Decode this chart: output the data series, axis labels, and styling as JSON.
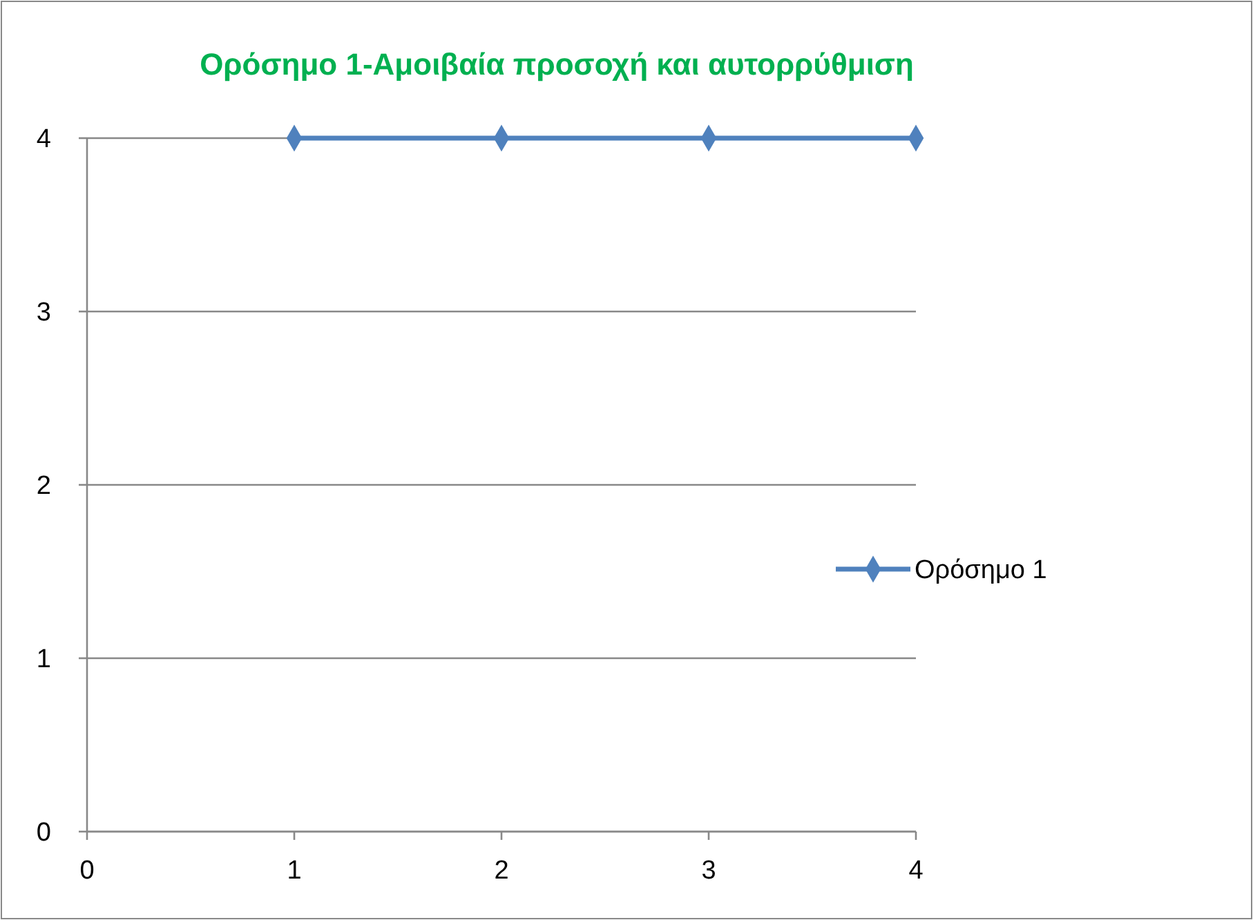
{
  "chart_data": {
    "type": "line",
    "title": "Ορόσημο 1-Αμοιβαία προσοχή και αυτορρύθμιση",
    "x": [
      1,
      2,
      3,
      4
    ],
    "series": [
      {
        "name": "Ορόσημο 1",
        "color": "#4f81bd",
        "values": [
          4,
          4,
          4,
          4
        ]
      }
    ],
    "xlim": [
      0,
      4
    ],
    "xticks": [
      0,
      1,
      2,
      3,
      4
    ],
    "ylim": [
      0,
      4
    ],
    "yticks": [
      0,
      1,
      2,
      3,
      4
    ],
    "grid": "y",
    "legend": "right",
    "marker": "diamond",
    "line_style": "solid"
  }
}
